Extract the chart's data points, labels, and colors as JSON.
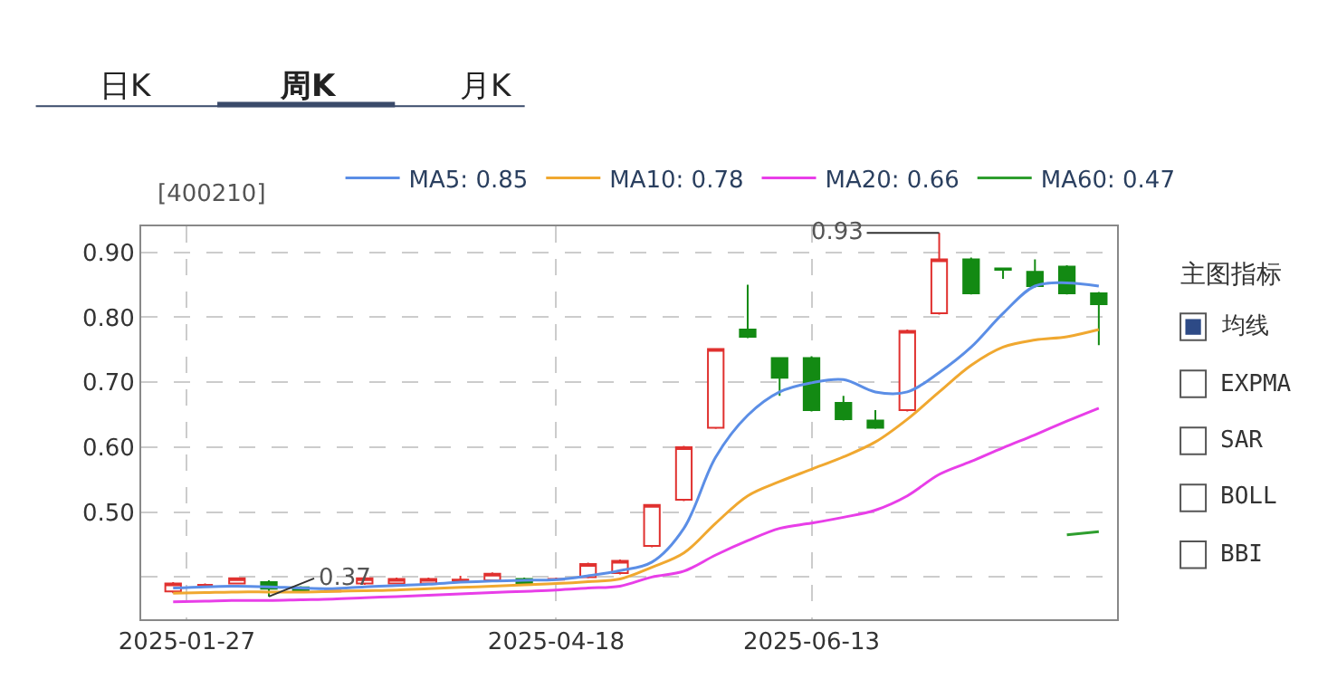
{
  "chart_data": {
    "type": "candlestick",
    "x": [
      "2025-01-24",
      "2025-01-31",
      "2025-02-07",
      "2025-02-14",
      "2025-02-21",
      "2025-02-28",
      "2025-03-07",
      "2025-03-14",
      "2025-03-21",
      "2025-03-28",
      "2025-04-04",
      "2025-04-11",
      "2025-04-18",
      "2025-04-25",
      "2025-05-02",
      "2025-05-09",
      "2025-05-16",
      "2025-05-23",
      "2025-05-30",
      "2025-06-06",
      "2025-06-13",
      "2025-06-20",
      "2025-06-27",
      "2025-07-04",
      "2025-07-11",
      "2025-07-18",
      "2025-07-25",
      "2025-08-01",
      "2025-08-08",
      "2025-08-15"
    ],
    "ohlc": [
      [
        0.378,
        0.392,
        0.375,
        0.39
      ],
      [
        0.388,
        0.39,
        0.386,
        0.388
      ],
      [
        0.39,
        0.399,
        0.389,
        0.398
      ],
      [
        0.392,
        0.395,
        0.37,
        0.382
      ],
      [
        0.384,
        0.386,
        0.376,
        0.378
      ],
      [
        0.378,
        0.38,
        0.377,
        0.379
      ],
      [
        0.39,
        0.402,
        0.388,
        0.398
      ],
      [
        0.39,
        0.399,
        0.389,
        0.397
      ],
      [
        0.39,
        0.399,
        0.388,
        0.397
      ],
      [
        0.395,
        0.402,
        0.393,
        0.396
      ],
      [
        0.395,
        0.407,
        0.393,
        0.405
      ],
      [
        0.397,
        0.399,
        0.388,
        0.39
      ],
      [
        0.396,
        0.399,
        0.395,
        0.397
      ],
      [
        0.4,
        0.422,
        0.398,
        0.42
      ],
      [
        0.406,
        0.427,
        0.404,
        0.425
      ],
      [
        0.448,
        0.512,
        0.446,
        0.511
      ],
      [
        0.519,
        0.602,
        0.517,
        0.6
      ],
      [
        0.63,
        0.752,
        0.628,
        0.751
      ],
      [
        0.781,
        0.85,
        0.768,
        0.77
      ],
      [
        0.737,
        0.737,
        0.679,
        0.707
      ],
      [
        0.737,
        0.74,
        0.655,
        0.657
      ],
      [
        0.668,
        0.679,
        0.641,
        0.643
      ],
      [
        0.641,
        0.657,
        0.628,
        0.63
      ],
      [
        0.657,
        0.781,
        0.655,
        0.779
      ],
      [
        0.806,
        0.93,
        0.804,
        0.889
      ],
      [
        0.889,
        0.892,
        0.835,
        0.837
      ],
      [
        0.875,
        0.876,
        0.859,
        0.873
      ],
      [
        0.87,
        0.889,
        0.846,
        0.848
      ],
      [
        0.878,
        0.88,
        0.835,
        0.837
      ],
      [
        0.837,
        0.839,
        0.757,
        0.82
      ]
    ],
    "colors": [
      "#e0312f",
      "#e0312f",
      "#e0312f",
      "#138a13",
      "#138a13",
      "#e0312f",
      "#e0312f",
      "#e0312f",
      "#e0312f",
      "#e0312f",
      "#e0312f",
      "#138a13",
      "#e0312f",
      "#e0312f",
      "#e0312f",
      "#e0312f",
      "#e0312f",
      "#e0312f",
      "#138a13",
      "#138a13",
      "#138a13",
      "#138a13",
      "#138a13",
      "#e0312f",
      "#e0312f",
      "#138a13",
      "#138a13",
      "#138a13",
      "#138a13",
      "#138a13"
    ],
    "series": [
      {
        "name": "MA5: 0.85",
        "color": "#5b8ee6",
        "type": "line",
        "values": [
          0.383,
          0.385,
          0.386,
          0.385,
          0.383,
          0.382,
          0.385,
          0.387,
          0.389,
          0.392,
          0.394,
          0.395,
          0.396,
          0.402,
          0.41,
          0.423,
          0.475,
          0.585,
          0.649,
          0.685,
          0.699,
          0.704,
          0.685,
          0.685,
          0.715,
          0.754,
          0.806,
          0.848,
          0.853,
          0.848
        ]
      },
      {
        "name": "MA10: 0.78",
        "color": "#f0a830",
        "type": "line",
        "values": [
          0.375,
          0.376,
          0.377,
          0.377,
          0.377,
          0.378,
          0.379,
          0.38,
          0.382,
          0.384,
          0.386,
          0.388,
          0.39,
          0.393,
          0.397,
          0.415,
          0.437,
          0.483,
          0.525,
          0.547,
          0.566,
          0.585,
          0.608,
          0.643,
          0.685,
          0.726,
          0.754,
          0.765,
          0.77,
          0.781
        ]
      },
      {
        "name": "MA20: 0.66",
        "color": "#e83ee8",
        "type": "line",
        "values": [
          0.362,
          0.363,
          0.364,
          0.364,
          0.365,
          0.366,
          0.368,
          0.37,
          0.372,
          0.374,
          0.376,
          0.378,
          0.38,
          0.383,
          0.386,
          0.4,
          0.409,
          0.434,
          0.456,
          0.475,
          0.483,
          0.492,
          0.503,
          0.525,
          0.558,
          0.578,
          0.599,
          0.619,
          0.64,
          0.66
        ]
      },
      {
        "name": "MA60: 0.47",
        "color": "#2e9e2e",
        "type": "line",
        "values": [
          null,
          null,
          null,
          null,
          null,
          null,
          null,
          null,
          null,
          null,
          null,
          null,
          null,
          null,
          null,
          null,
          null,
          null,
          null,
          null,
          null,
          null,
          null,
          null,
          null,
          null,
          null,
          null,
          0.465,
          0.47
        ]
      }
    ],
    "xlim": [
      "2025-01-17",
      "2025-08-19"
    ],
    "xticks": [
      "2025-01-27",
      "2025-04-18",
      "2025-06-13"
    ],
    "ylim": [
      0.335,
      0.94
    ],
    "yticks": [
      {
        "value": 0.4,
        "label": null
      },
      {
        "value": 0.5,
        "label": "0.50"
      },
      {
        "value": 0.6,
        "label": "0.60"
      },
      {
        "value": 0.7,
        "label": "0.70"
      },
      {
        "value": 0.8,
        "label": "0.80"
      },
      {
        "value": 0.9,
        "label": "0.90"
      }
    ],
    "grid": true,
    "legend": "top",
    "annotations": [
      "日K",
      "周K",
      "月K",
      "[400210]",
      "主图指标",
      "均线",
      "EXPMA",
      "SAR",
      "BOLL",
      "BBI",
      {
        "text": "0.93",
        "x": "2025-07-11",
        "y": 0.93
      },
      {
        "text": "0.37",
        "x": "2025-02-14",
        "y": 0.37
      }
    ]
  }
}
